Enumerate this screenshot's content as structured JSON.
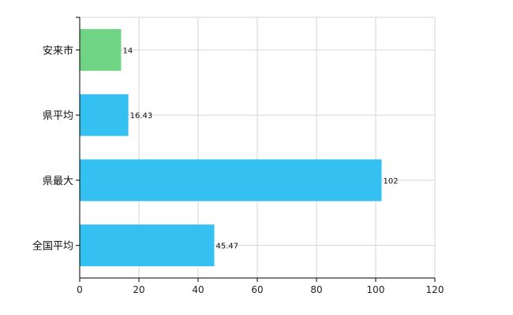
{
  "chart_data": {
    "type": "bar",
    "orientation": "horizontal",
    "categories": [
      "安来市",
      "県平均",
      "県最大",
      "全国平均"
    ],
    "values": [
      14,
      16.43,
      102,
      45.47
    ],
    "value_labels": [
      "14",
      "16.43",
      "102",
      "45.47"
    ],
    "bar_colors": [
      "#6fd484",
      "#35c0f2",
      "#35c0f2",
      "#35c0f2"
    ],
    "xlim": [
      0,
      120
    ],
    "xticks": [
      0,
      20,
      40,
      60,
      80,
      100,
      120
    ],
    "grid": true,
    "title": "",
    "xlabel": "",
    "ylabel": ""
  }
}
